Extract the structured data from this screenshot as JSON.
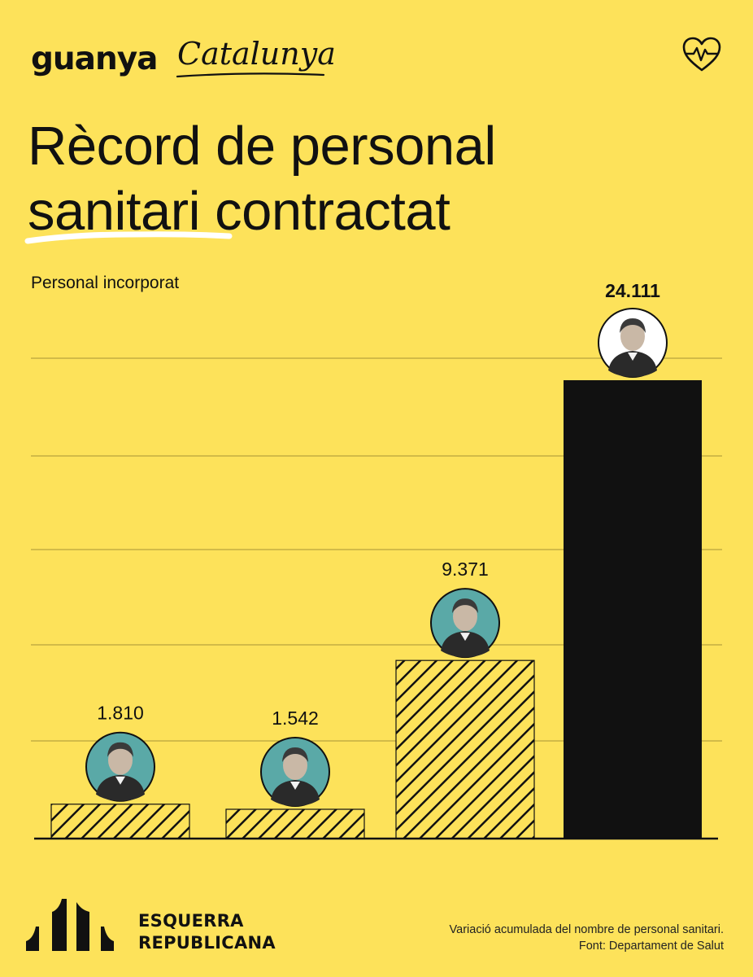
{
  "brand": {
    "bold": "guanya",
    "script": "Catalunya",
    "icon": "heart-pulse-icon"
  },
  "title": {
    "line1": "Rècord de personal",
    "line2_underlined": "sanitari",
    "line2_rest": " contractat"
  },
  "chart_data": {
    "type": "bar",
    "title": "Rècord de personal sanitari contractat",
    "ylabel": "Personal incorporat",
    "categories": [
      "",
      "",
      "",
      ""
    ],
    "values": [
      1810,
      1542,
      9371,
      24111
    ],
    "value_labels": [
      "1.810",
      "1.542",
      "9.371",
      "24.111"
    ],
    "ylim": [
      0,
      25000
    ],
    "grid": true,
    "bar_styles": [
      "hatched",
      "hatched",
      "hatched",
      "solid-black"
    ],
    "portraits": [
      "portrait-1",
      "portrait-2",
      "portrait-3",
      "portrait-4"
    ],
    "colors": {
      "background": "#fde25a",
      "bar_solid": "#111111",
      "hatch": "#111111",
      "portrait_circle": "#5aa9a7"
    }
  },
  "footer": {
    "logo": "esquerra-republicana-logo",
    "org_line1": "ESQUERRA",
    "org_line2": "REPUBLICANA",
    "note_line1": "Variació acumulada del nombre de personal sanitari.",
    "note_line2": "Font: Departament de Salut"
  }
}
